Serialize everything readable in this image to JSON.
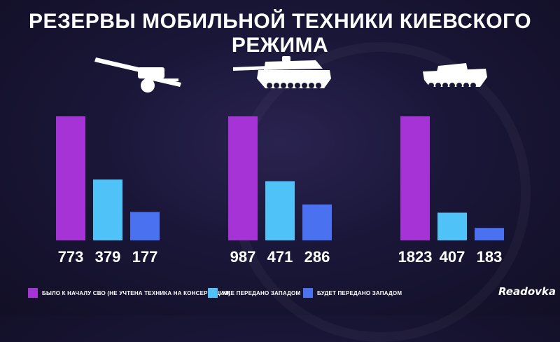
{
  "title": "РЕЗЕРВЫ МОБИЛЬНОЙ ТЕХНИКИ КИЕВСКОГО РЕЖИМА",
  "logo": "Readovka",
  "colors": {
    "series1": "#a533d6",
    "series2": "#4fc3f7",
    "series3": "#4a72f0"
  },
  "icons": [
    "howitzer-icon",
    "tank-icon",
    "ifv-icon"
  ],
  "chart_data": {
    "type": "bar",
    "groups": [
      {
        "icon": "howitzer-icon",
        "values": [
          773,
          379,
          177
        ]
      },
      {
        "icon": "tank-icon",
        "values": [
          987,
          471,
          286
        ]
      },
      {
        "icon": "ifv-icon",
        "values": [
          1823,
          407,
          183
        ]
      }
    ],
    "series": [
      {
        "name": "БЫЛО К НАЧАЛУ СВО (НЕ УЧТЕНА ТЕХНИКА НА КОНСЕРВАЦИИ)",
        "color": "#a533d6"
      },
      {
        "name": "УЖЕ ПЕРЕДАНО ЗАПАДОМ",
        "color": "#4fc3f7"
      },
      {
        "name": "БУДЕТ ПЕРЕДАНО ЗАПАДОМ",
        "color": "#4a72f0"
      }
    ],
    "legend": "bottom"
  }
}
